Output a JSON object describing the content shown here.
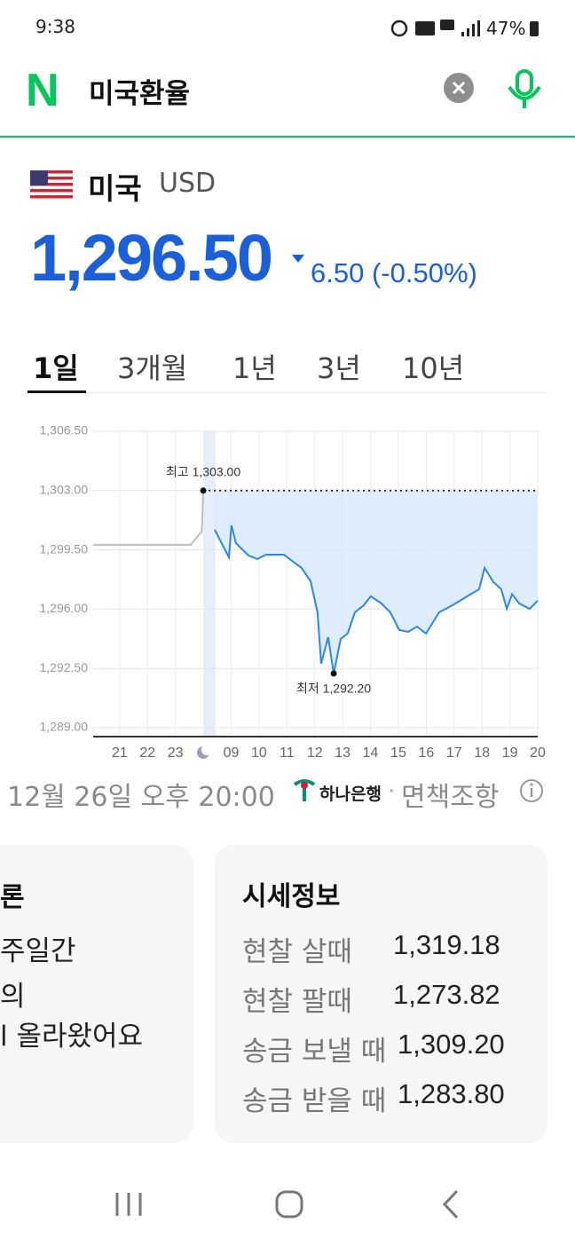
{
  "status_bar": {
    "time": "9:38",
    "battery": "47%"
  },
  "search": {
    "logo": "N",
    "query": "미국환율"
  },
  "currency": {
    "name": "미국",
    "code": "USD",
    "price": "1,296.50",
    "change": "6.50",
    "change_pct": "(-0.50%)"
  },
  "tabs": [
    "1일",
    "3개월",
    "1년",
    "3년",
    "10년"
  ],
  "chart_data": {
    "type": "line",
    "xlim": [
      -0.95,
      15
    ],
    "xticks": [
      {
        "value": 0,
        "label": "21"
      },
      {
        "value": 1,
        "label": "22"
      },
      {
        "value": 2,
        "label": "23"
      },
      {
        "value": 4,
        "label": "09"
      },
      {
        "value": 5,
        "label": "10"
      },
      {
        "value": 6,
        "label": "11"
      },
      {
        "value": 7,
        "label": "12"
      },
      {
        "value": 8,
        "label": "13"
      },
      {
        "value": 9,
        "label": "14"
      },
      {
        "value": 10,
        "label": "15"
      },
      {
        "value": 11,
        "label": "16"
      },
      {
        "value": 12,
        "label": "17"
      },
      {
        "value": 13,
        "label": "18"
      },
      {
        "value": 14,
        "label": "19"
      },
      {
        "value": 15,
        "label": "20"
      }
    ],
    "ylim": [
      1289,
      1306.5
    ],
    "yticks": [
      {
        "value": 1289,
        "label": "1,289.00"
      },
      {
        "value": 1292.5,
        "label": "1,292.50"
      },
      {
        "value": 1296,
        "label": "1,296.00"
      },
      {
        "value": 1299.5,
        "label": "1,299.50"
      },
      {
        "value": 1303,
        "label": "1,303.00"
      },
      {
        "value": 1306.5,
        "label": "1,306.50"
      }
    ],
    "grid": true,
    "series": [
      {
        "color": "#bdbdc4",
        "x": [
          -0.95,
          2.55,
          2.95,
          3.0
        ],
        "values": [
          1299.8,
          1299.8,
          1300.6,
          1303.0
        ]
      },
      {
        "color": "#2a88e6",
        "x": [
          3.41,
          3.92,
          4.01,
          4.17,
          4.62,
          4.94,
          5.25,
          5.89,
          6.53,
          6.85,
          7.1,
          7.23,
          7.48,
          7.68,
          7.93,
          8.18,
          8.44,
          8.76,
          9.01,
          9.39,
          9.71,
          10.03,
          10.35,
          10.67,
          10.99,
          11.46,
          11.94,
          12.9,
          13.09,
          13.41,
          13.69,
          13.89,
          14.08,
          14.33,
          14.71,
          15.0
        ],
        "values": [
          1300.69,
          1299.06,
          1300.95,
          1299.9,
          1299.17,
          1298.96,
          1299.22,
          1299.22,
          1298.43,
          1297.65,
          1295.81,
          1292.78,
          1294.35,
          1292.2,
          1294.24,
          1294.56,
          1295.81,
          1296.23,
          1296.76,
          1296.34,
          1295.81,
          1294.77,
          1294.66,
          1294.97,
          1294.56,
          1295.81,
          1296.23,
          1297.18,
          1298.43,
          1297.6,
          1297.18,
          1296.02,
          1296.89,
          1296.34,
          1296.02,
          1296.5
        ]
      }
    ],
    "annotations": {
      "max": "최고 1,303.00",
      "min": "최저 1,292.20"
    }
  },
  "source": {
    "date": "12월 26일 오후 20:00",
    "bank": "하나은행",
    "disclaimer": "면책조항"
  },
  "cards": {
    "left": {
      "title": "론",
      "lines": [
        "주일간",
        "의",
        "l 올라왔어요"
      ]
    },
    "right": {
      "title": "시세정보",
      "rows": [
        [
          "현찰 살때",
          "1,319.18"
        ],
        [
          "현찰 팔때",
          "1,273.82"
        ],
        [
          "송금 보낼 때",
          "1,309.20"
        ],
        [
          "송금 받을 때",
          "1,283.80"
        ]
      ]
    }
  }
}
